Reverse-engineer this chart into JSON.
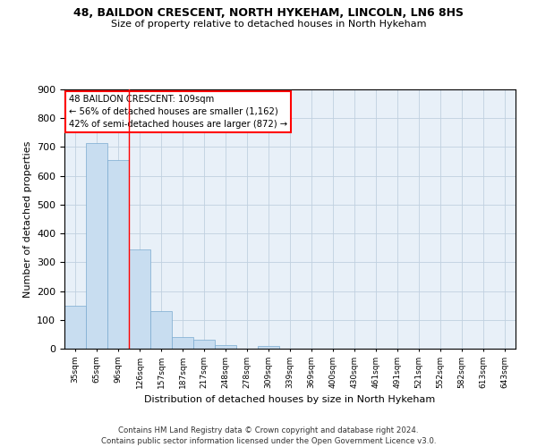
{
  "title_line1": "48, BAILDON CRESCENT, NORTH HYKEHAM, LINCOLN, LN6 8HS",
  "title_line2": "Size of property relative to detached houses in North Hykeham",
  "xlabel": "Distribution of detached houses by size in North Hykeham",
  "ylabel": "Number of detached properties",
  "bar_color": "#c8ddf0",
  "bar_edge_color": "#7aaad0",
  "categories": [
    "35sqm",
    "65sqm",
    "96sqm",
    "126sqm",
    "157sqm",
    "187sqm",
    "217sqm",
    "248sqm",
    "278sqm",
    "309sqm",
    "339sqm",
    "369sqm",
    "400sqm",
    "430sqm",
    "461sqm",
    "491sqm",
    "521sqm",
    "552sqm",
    "582sqm",
    "613sqm",
    "643sqm"
  ],
  "values": [
    150,
    715,
    655,
    345,
    130,
    40,
    30,
    12,
    0,
    10,
    0,
    0,
    0,
    0,
    0,
    0,
    0,
    0,
    0,
    0,
    0
  ],
  "ylim": [
    0,
    900
  ],
  "yticks": [
    0,
    100,
    200,
    300,
    400,
    500,
    600,
    700,
    800,
    900
  ],
  "red_line_x": 2.5,
  "annotation_line1": "48 BAILDON CRESCENT: 109sqm",
  "annotation_line2": "← 56% of detached houses are smaller (1,162)",
  "annotation_line3": "42% of semi-detached houses are larger (872) →",
  "footer_line1": "Contains HM Land Registry data © Crown copyright and database right 2024.",
  "footer_line2": "Contains public sector information licensed under the Open Government Licence v3.0.",
  "bg_color": "#e8f0f8",
  "grid_color": "#c0d0e0"
}
